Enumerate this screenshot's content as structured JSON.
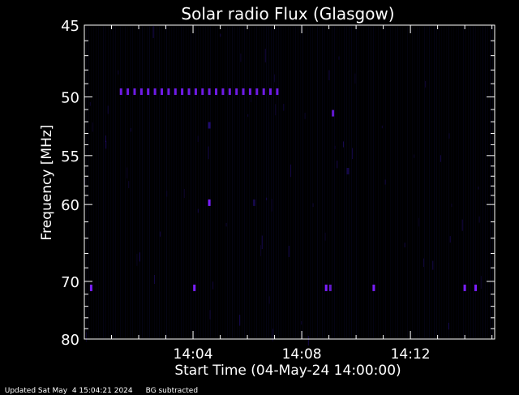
{
  "chart_data": {
    "type": "heatmap",
    "title": "Solar radio Flux (Glasgow)",
    "xlabel": "Start Time (04-May-24 14:00:00)",
    "ylabel": "Frequency [MHz]",
    "x_unit": "minutes after 14:00",
    "xlim": [
      0,
      15.1
    ],
    "ylim": [
      80,
      45
    ],
    "x_ticks": [
      {
        "value": 4,
        "label": "14:04"
      },
      {
        "value": 8,
        "label": "14:08"
      },
      {
        "value": 12,
        "label": "14:12"
      }
    ],
    "y_ticks": [
      {
        "value": 45,
        "label": "45"
      },
      {
        "value": 50,
        "label": "50"
      },
      {
        "value": 55,
        "label": "55"
      },
      {
        "value": 60,
        "label": "60"
      },
      {
        "value": 70,
        "label": "70"
      },
      {
        "value": 80,
        "label": "80"
      }
    ],
    "y_scale": "reciprocal",
    "grid": false,
    "colormap": [
      "#000000",
      "#10104a",
      "#3a16c8",
      "#7a1eff"
    ],
    "background": "#000000",
    "bursts": [
      {
        "t": 1.35,
        "f": 49.6,
        "intensity": 0.9
      },
      {
        "t": 1.6,
        "f": 49.6,
        "intensity": 0.9
      },
      {
        "t": 1.85,
        "f": 49.6,
        "intensity": 0.9
      },
      {
        "t": 2.1,
        "f": 49.6,
        "intensity": 0.9
      },
      {
        "t": 2.35,
        "f": 49.6,
        "intensity": 0.9
      },
      {
        "t": 2.6,
        "f": 49.6,
        "intensity": 0.9
      },
      {
        "t": 2.85,
        "f": 49.6,
        "intensity": 0.9
      },
      {
        "t": 3.1,
        "f": 49.6,
        "intensity": 0.9
      },
      {
        "t": 3.35,
        "f": 49.6,
        "intensity": 0.9
      },
      {
        "t": 3.6,
        "f": 49.6,
        "intensity": 0.9
      },
      {
        "t": 3.85,
        "f": 49.6,
        "intensity": 0.9
      },
      {
        "t": 4.1,
        "f": 49.6,
        "intensity": 0.9
      },
      {
        "t": 4.35,
        "f": 49.6,
        "intensity": 0.9
      },
      {
        "t": 4.6,
        "f": 49.6,
        "intensity": 0.9
      },
      {
        "t": 4.85,
        "f": 49.6,
        "intensity": 0.9
      },
      {
        "t": 5.1,
        "f": 49.6,
        "intensity": 0.9
      },
      {
        "t": 5.35,
        "f": 49.6,
        "intensity": 0.9
      },
      {
        "t": 5.6,
        "f": 49.6,
        "intensity": 0.9
      },
      {
        "t": 5.85,
        "f": 49.6,
        "intensity": 0.9
      },
      {
        "t": 6.1,
        "f": 49.6,
        "intensity": 0.9
      },
      {
        "t": 6.35,
        "f": 49.6,
        "intensity": 0.9
      },
      {
        "t": 6.6,
        "f": 49.6,
        "intensity": 0.9
      },
      {
        "t": 6.85,
        "f": 49.6,
        "intensity": 0.9
      },
      {
        "t": 7.1,
        "f": 49.6,
        "intensity": 0.9
      },
      {
        "t": 4.6,
        "f": 52.3,
        "intensity": 0.55
      },
      {
        "t": 4.6,
        "f": 59.8,
        "intensity": 1.0
      },
      {
        "t": 6.25,
        "f": 59.8,
        "intensity": 0.35
      },
      {
        "t": 9.15,
        "f": 51.3,
        "intensity": 0.8
      },
      {
        "t": 9.7,
        "f": 56.5,
        "intensity": 0.35
      },
      {
        "t": 0.25,
        "f": 71.0,
        "intensity": 1.0
      },
      {
        "t": 4.05,
        "f": 71.0,
        "intensity": 1.0
      },
      {
        "t": 8.9,
        "f": 71.0,
        "intensity": 1.0
      },
      {
        "t": 9.05,
        "f": 71.0,
        "intensity": 0.8
      },
      {
        "t": 10.65,
        "f": 71.0,
        "intensity": 1.0
      },
      {
        "t": 14.0,
        "f": 71.0,
        "intensity": 1.0
      },
      {
        "t": 14.4,
        "f": 71.0,
        "intensity": 1.0
      }
    ]
  },
  "footer": {
    "updated": "Updated Sat May  4 15:04:21 2024",
    "note": "BG subtracted"
  }
}
